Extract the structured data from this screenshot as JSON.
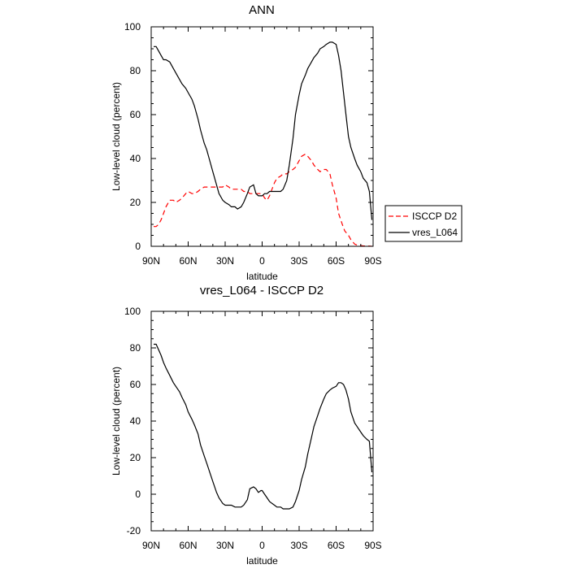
{
  "chart_data": [
    {
      "type": "line",
      "title": "ANN",
      "xlabel": "latitude",
      "ylabel": "Low-level cloud (percent)",
      "ylim": [
        0,
        100
      ],
      "yticks": [
        0,
        20,
        40,
        60,
        80,
        100
      ],
      "xlim": [
        90,
        -90
      ],
      "xticks": [
        90,
        60,
        30,
        0,
        -30,
        -60,
        -90
      ],
      "xtick_labels": [
        "90N",
        "60N",
        "30N",
        "0",
        "30S",
        "60S",
        "90S"
      ],
      "grid": false,
      "legend_position": "right",
      "series": [
        {
          "name": "ISCCP D2",
          "color": "#ff0000",
          "dash": "dashed",
          "x": [
            88,
            86,
            84,
            82,
            80,
            78,
            75,
            72,
            70,
            67,
            65,
            62,
            60,
            57,
            55,
            52,
            50,
            47,
            45,
            42,
            40,
            37,
            35,
            32,
            30,
            27,
            25,
            22,
            20,
            17,
            15,
            12,
            10,
            7,
            5,
            2,
            0,
            -2,
            -4,
            -6,
            -8,
            -10,
            -12,
            -15,
            -17,
            -20,
            -22,
            -25,
            -27,
            -30,
            -32,
            -35,
            -37,
            -40,
            -42,
            -45,
            -47,
            -50,
            -52,
            -55,
            -57,
            -60,
            -62,
            -65,
            -67,
            -70,
            -72,
            -75,
            -77,
            -80,
            -82,
            -85,
            -87,
            -89
          ],
          "y": [
            9,
            9,
            10,
            12,
            15,
            18,
            21,
            21,
            20,
            21,
            22,
            24,
            25,
            24,
            24,
            25,
            26,
            27,
            27,
            27,
            27,
            27,
            27,
            27,
            28,
            27,
            26,
            26,
            26,
            26,
            25,
            25,
            24,
            24,
            24,
            24,
            24,
            22,
            21,
            23,
            26,
            29,
            31,
            32,
            33,
            33,
            34,
            35,
            36,
            39,
            41,
            42,
            41,
            39,
            37,
            35,
            34,
            35,
            35,
            33,
            28,
            22,
            15,
            10,
            7,
            5,
            3,
            1,
            0.5,
            0.3,
            0.2,
            0.1,
            0.1,
            0
          ],
          "legend_label": "ISCCP D2"
        },
        {
          "name": "vres_L064",
          "color": "#000000",
          "dash": "solid",
          "x": [
            88,
            86,
            84,
            82,
            80,
            78,
            75,
            72,
            70,
            67,
            65,
            62,
            60,
            57,
            55,
            52,
            50,
            47,
            45,
            42,
            40,
            37,
            35,
            32,
            30,
            27,
            25,
            22,
            20,
            17,
            15,
            12,
            10,
            7,
            5,
            3,
            1,
            0,
            -2,
            -4,
            -6,
            -8,
            -10,
            -12,
            -15,
            -17,
            -20,
            -22,
            -25,
            -27,
            -30,
            -32,
            -35,
            -37,
            -40,
            -42,
            -45,
            -47,
            -50,
            -52,
            -55,
            -57,
            -60,
            -62,
            -64,
            -66,
            -68,
            -70,
            -72,
            -75,
            -77,
            -80,
            -82,
            -85,
            -87,
            -89
          ],
          "y": [
            91,
            91,
            89,
            87,
            85,
            85,
            84,
            81,
            79,
            76,
            74,
            72,
            70,
            67,
            64,
            58,
            53,
            47,
            44,
            38,
            34,
            28,
            24,
            21,
            20,
            19,
            18,
            18,
            17,
            18,
            20,
            24,
            27,
            28,
            24,
            23,
            23,
            23,
            24,
            24,
            25,
            25,
            25,
            25,
            25,
            26,
            30,
            37,
            49,
            60,
            69,
            74,
            78,
            81,
            84,
            86,
            88,
            90,
            91,
            92,
            93,
            93,
            92,
            87,
            80,
            70,
            60,
            50,
            45,
            40,
            37,
            34,
            31,
            29,
            25,
            12
          ],
          "legend_label": "vres_L064"
        }
      ]
    },
    {
      "type": "line",
      "title": "vres_L064 - ISCCP D2",
      "xlabel": "latitude",
      "ylabel": "Low-level cloud (percent)",
      "ylim": [
        -20,
        100
      ],
      "yticks": [
        -20,
        0,
        20,
        40,
        60,
        80,
        100
      ],
      "xlim": [
        90,
        -90
      ],
      "xticks": [
        90,
        60,
        30,
        0,
        -30,
        -60,
        -90
      ],
      "xtick_labels": [
        "90N",
        "60N",
        "30N",
        "0",
        "30S",
        "60S",
        "90S"
      ],
      "grid": false,
      "series": [
        {
          "color": "#000000",
          "dash": "solid",
          "x": [
            88,
            86,
            84,
            82,
            80,
            78,
            75,
            72,
            70,
            67,
            65,
            62,
            60,
            57,
            55,
            52,
            50,
            47,
            45,
            42,
            40,
            37,
            35,
            32,
            30,
            27,
            25,
            22,
            20,
            17,
            15,
            12,
            10,
            7,
            5,
            3,
            1,
            0,
            -2,
            -4,
            -6,
            -8,
            -10,
            -12,
            -15,
            -17,
            -20,
            -22,
            -25,
            -27,
            -30,
            -32,
            -35,
            -37,
            -40,
            -42,
            -45,
            -47,
            -50,
            -52,
            -55,
            -57,
            -60,
            -62,
            -64,
            -66,
            -68,
            -70,
            -72,
            -75,
            -77,
            -80,
            -82,
            -85,
            -87,
            -89
          ],
          "y": [
            82,
            82,
            79,
            76,
            72,
            69,
            65,
            61,
            59,
            56,
            53,
            49,
            45,
            41,
            38,
            33,
            27,
            21,
            17,
            11,
            7,
            1,
            -2,
            -5,
            -6,
            -6,
            -6,
            -7,
            -7,
            -7,
            -6,
            -3,
            3,
            4,
            3,
            1,
            2,
            2,
            0,
            -2,
            -4,
            -5,
            -6,
            -7,
            -7,
            -8,
            -8,
            -8,
            -7,
            -4,
            2,
            8,
            15,
            22,
            31,
            37,
            43,
            47,
            52,
            55,
            57,
            58,
            59,
            61,
            61,
            60,
            57,
            52,
            45,
            39,
            37,
            34,
            32,
            30,
            29,
            12
          ]
        }
      ]
    }
  ]
}
